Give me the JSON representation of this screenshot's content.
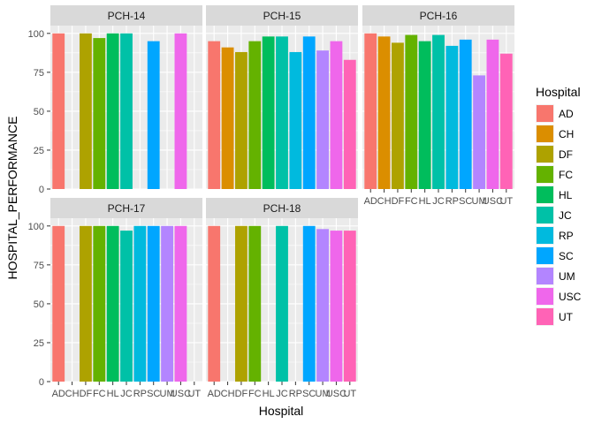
{
  "chart_data": {
    "type": "bar",
    "xlabel": "Hospital",
    "ylabel": "HOSPITAL_PERFORMANCE",
    "ylim": [
      0,
      105
    ],
    "yticks": [
      0,
      25,
      50,
      75,
      100
    ],
    "grid": true,
    "legend": {
      "title": "Hospital",
      "position": "right",
      "entries": [
        {
          "name": "AD",
          "color": "#F8766D"
        },
        {
          "name": "CH",
          "color": "#DB8E00"
        },
        {
          "name": "DF",
          "color": "#AEA200"
        },
        {
          "name": "FC",
          "color": "#64B200"
        },
        {
          "name": "HL",
          "color": "#00BD5C"
        },
        {
          "name": "JC",
          "color": "#00C1A7"
        },
        {
          "name": "RP",
          "color": "#00BADE"
        },
        {
          "name": "SC",
          "color": "#00A6FF"
        },
        {
          "name": "UM",
          "color": "#B385FF"
        },
        {
          "name": "USC",
          "color": "#EF67EB"
        },
        {
          "name": "UT",
          "color": "#FF63B6"
        }
      ]
    },
    "categories": [
      "AD",
      "CH",
      "DF",
      "FC",
      "HL",
      "JC",
      "RP",
      "SC",
      "UM",
      "USC",
      "UT"
    ],
    "panels": [
      {
        "title": "PCH-14",
        "values": [
          100,
          null,
          100,
          97,
          100,
          100,
          null,
          95,
          null,
          100,
          null
        ]
      },
      {
        "title": "PCH-15",
        "values": [
          95,
          91,
          88,
          95,
          98,
          98,
          88,
          98,
          89,
          95,
          83
        ]
      },
      {
        "title": "PCH-16",
        "values": [
          100,
          98,
          94,
          99,
          95,
          99,
          92,
          96,
          73,
          96,
          87
        ]
      },
      {
        "title": "PCH-17",
        "values": [
          100,
          null,
          100,
          100,
          100,
          97,
          100,
          100,
          100,
          100,
          null
        ]
      },
      {
        "title": "PCH-18",
        "values": [
          100,
          null,
          100,
          100,
          null,
          100,
          null,
          100,
          98,
          97,
          97
        ]
      }
    ]
  }
}
